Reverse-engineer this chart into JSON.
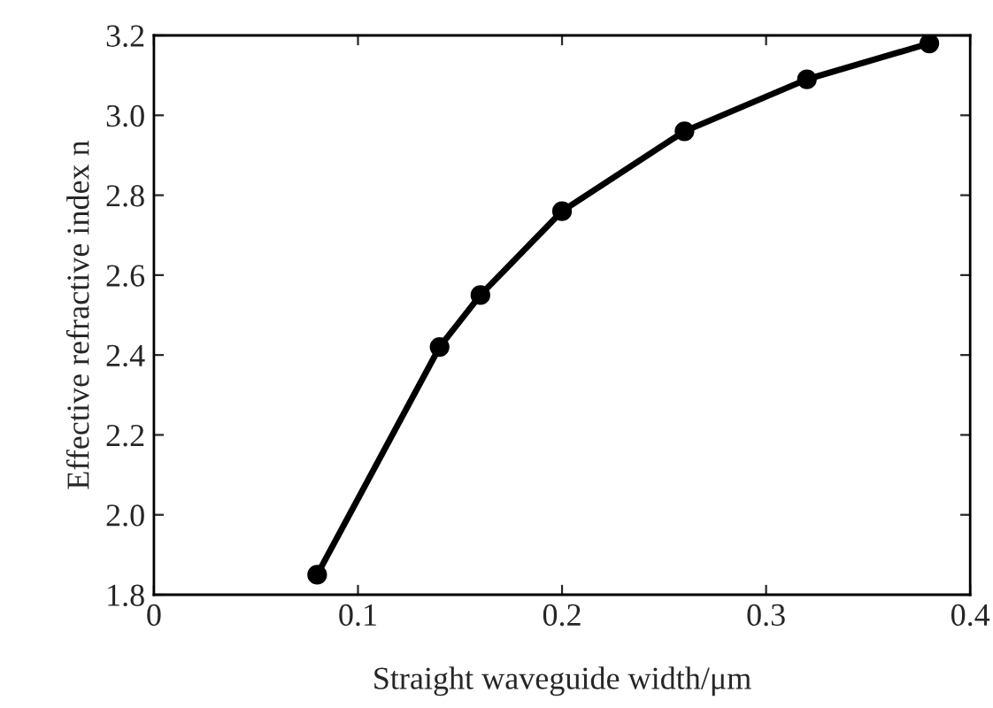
{
  "chart_data": {
    "type": "line",
    "xlabel": "Straight waveguide width/μm",
    "ylabel": "Effective refractive index n",
    "x": [
      0.08,
      0.14,
      0.16,
      0.2,
      0.26,
      0.32,
      0.38
    ],
    "series": [
      {
        "color": "#000000",
        "values": [
          1.85,
          2.42,
          2.55,
          2.76,
          2.96,
          3.09,
          3.18
        ]
      }
    ],
    "xlim": [
      0,
      0.4
    ],
    "xticks": [
      0,
      0.1,
      0.2,
      0.3,
      0.4
    ],
    "ylim": [
      1.8,
      3.2
    ],
    "yticks": [
      1.8,
      {
        "value": 2,
        "label": "2.0"
      },
      2.2,
      2.4,
      2.6,
      2.8,
      {
        "value": 3,
        "label": "3.0"
      },
      3.2
    ],
    "marker": "circle",
    "line_style": "solid",
    "grid": false,
    "legend": false
  }
}
